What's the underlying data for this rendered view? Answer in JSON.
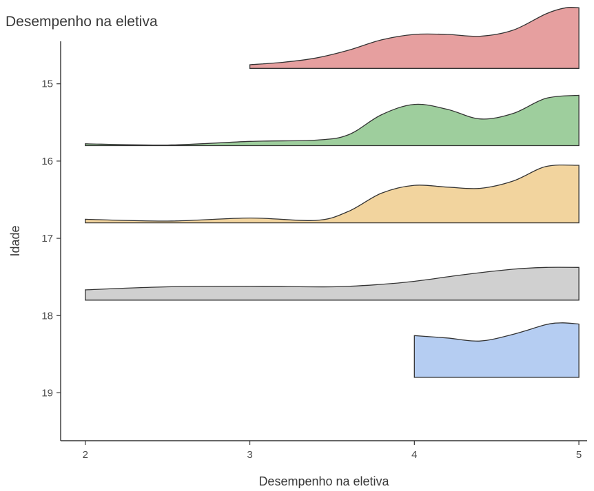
{
  "chart_data": {
    "type": "ridgeline",
    "title": "Desempenho na eletiva",
    "xlabel": "Desempenho na eletiva",
    "ylabel": "Idade",
    "xlim": [
      1.85,
      5.05
    ],
    "ylim": [
      14.45,
      19.62
    ],
    "x_ticks": [
      2,
      3,
      4,
      5
    ],
    "y_ticks": [
      15,
      16,
      17,
      18,
      19
    ],
    "grid": false,
    "legend": "none",
    "series": [
      {
        "category": 15,
        "color": "#E69F9F",
        "density": {
          "x": [
            3.0,
            3.2,
            3.4,
            3.6,
            3.8,
            4.0,
            4.2,
            4.4,
            4.6,
            4.8,
            4.92,
            5.0
          ],
          "y": [
            0.06,
            0.1,
            0.17,
            0.3,
            0.47,
            0.56,
            0.56,
            0.53,
            0.63,
            0.9,
            1.0,
            1.0
          ]
        }
      },
      {
        "category": 16,
        "color": "#9ECE9D",
        "density": {
          "x": [
            2.0,
            2.5,
            3.0,
            3.4,
            3.6,
            3.8,
            4.0,
            4.2,
            4.4,
            4.6,
            4.8,
            5.0
          ],
          "y": [
            0.03,
            0.01,
            0.07,
            0.09,
            0.18,
            0.51,
            0.68,
            0.6,
            0.44,
            0.53,
            0.78,
            0.83
          ]
        }
      },
      {
        "category": 17,
        "color": "#F2D49E",
        "density": {
          "x": [
            2.0,
            2.5,
            3.0,
            3.4,
            3.6,
            3.8,
            4.0,
            4.2,
            4.4,
            4.6,
            4.8,
            5.0
          ],
          "y": [
            0.06,
            0.03,
            0.08,
            0.04,
            0.19,
            0.49,
            0.62,
            0.59,
            0.57,
            0.69,
            0.93,
            0.95
          ]
        }
      },
      {
        "category": 18,
        "color": "#D0D0D0",
        "density": {
          "x": [
            2.0,
            2.5,
            3.0,
            3.5,
            3.8,
            4.0,
            4.3,
            4.6,
            4.8,
            5.0
          ],
          "y": [
            0.17,
            0.22,
            0.23,
            0.22,
            0.26,
            0.31,
            0.42,
            0.51,
            0.54,
            0.54
          ]
        }
      },
      {
        "category": 19,
        "color": "#B5CDF2",
        "density": {
          "x": [
            4.0,
            4.2,
            4.4,
            4.6,
            4.8,
            4.9,
            5.0
          ],
          "y": [
            0.69,
            0.65,
            0.6,
            0.71,
            0.87,
            0.9,
            0.88
          ]
        }
      }
    ]
  }
}
